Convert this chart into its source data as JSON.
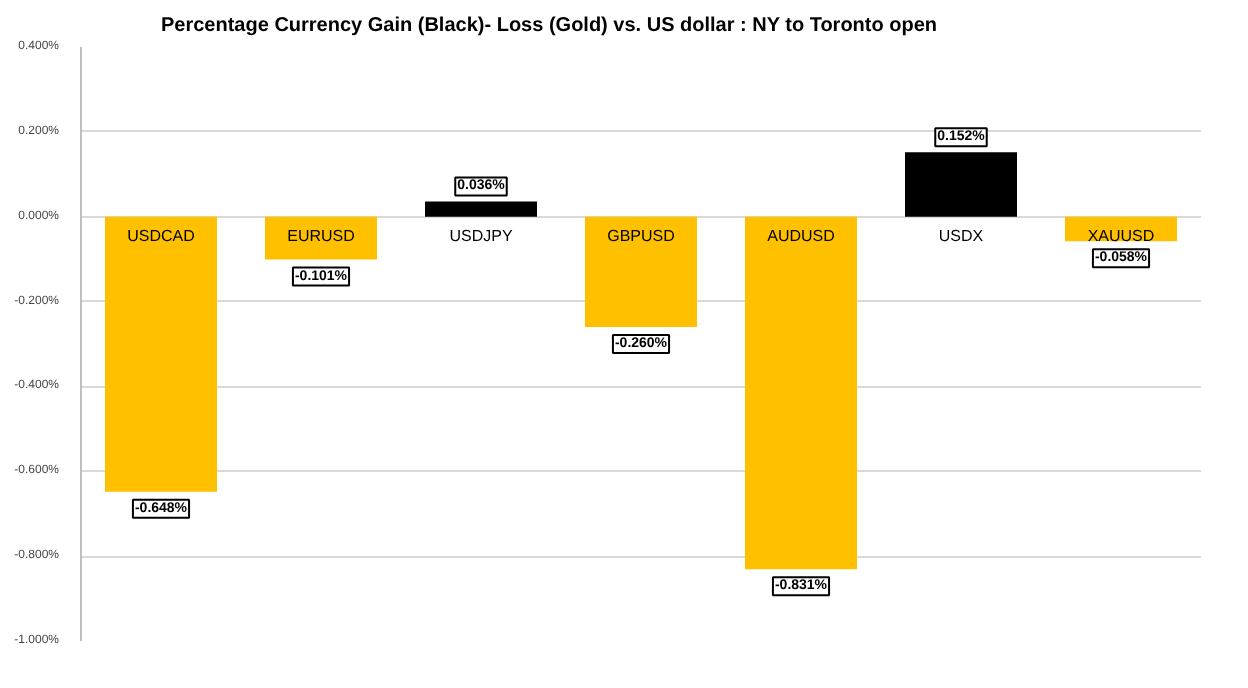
{
  "chart_data": {
    "type": "bar",
    "title": "Percentage Currency  Gain (Black)- Loss (Gold)  vs. US dollar :  NY  to Toronto  open",
    "categories": [
      "USDCAD",
      "EURUSD",
      "USDJPY",
      "GBPUSD",
      "AUDUSD",
      "USDX",
      "XAUUSD"
    ],
    "values": [
      -0.648,
      -0.101,
      0.036,
      -0.26,
      -0.831,
      0.152,
      -0.058
    ],
    "colors": [
      "#ffc000",
      "#ffc000",
      "#000000",
      "#ffc000",
      "#ffc000",
      "#000000",
      "#ffc000"
    ],
    "value_labels": [
      "-0.648%",
      "-0.101%",
      "0.036%",
      "-0.260%",
      "-0.831%",
      "0.152%",
      "-0.058%"
    ],
    "ylim": [
      -1.0,
      0.4
    ],
    "yticks": [
      {
        "value": -1.0,
        "label": "-1.000%"
      },
      {
        "value": -0.8,
        "label": "-0.800%"
      },
      {
        "value": -0.6,
        "label": "-0.600%"
      },
      {
        "value": -0.4,
        "label": "-0.400%"
      },
      {
        "value": -0.2,
        "label": "-0.200%"
      },
      {
        "value": 0,
        "label": "0.000%"
      },
      {
        "value": 0.2,
        "label": "0.200%"
      },
      {
        "value": 0.4,
        "label": "0.400%"
      }
    ],
    "grid": "y"
  }
}
